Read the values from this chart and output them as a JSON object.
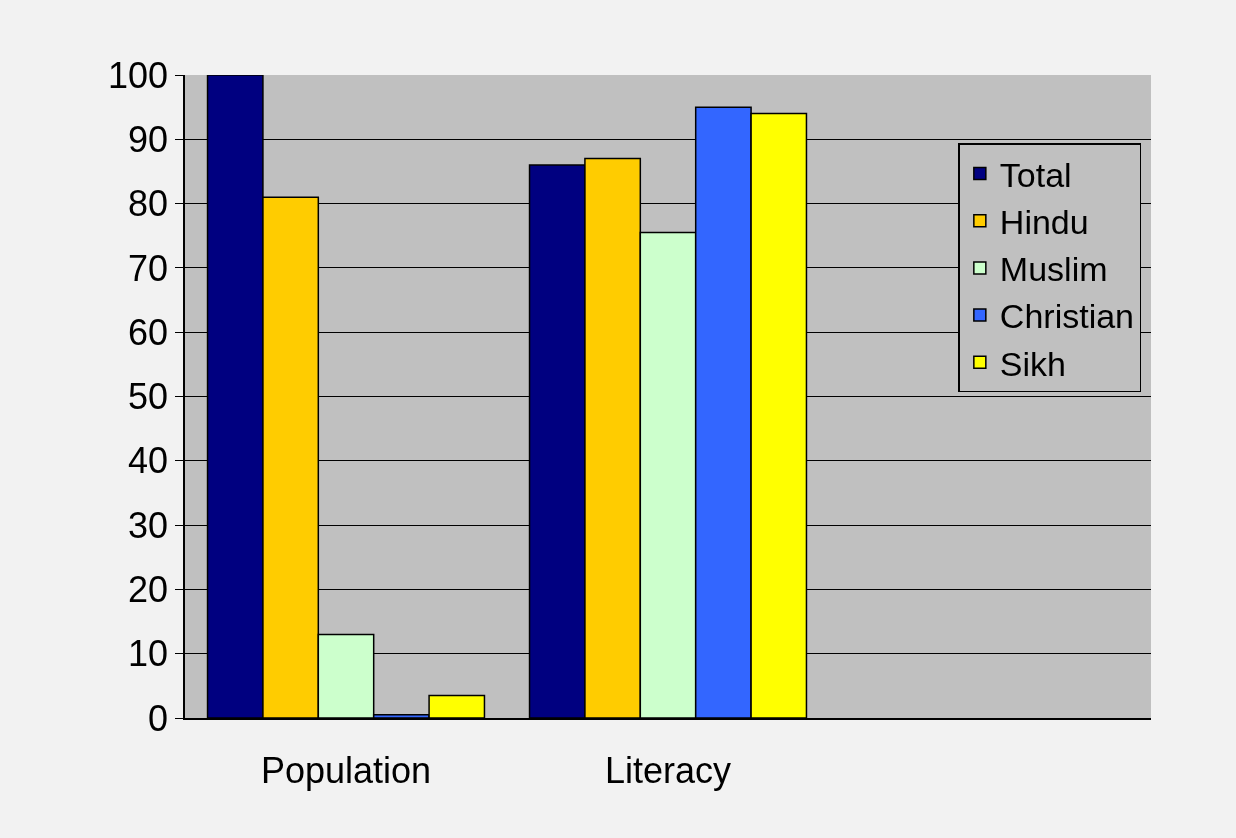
{
  "chart_data": {
    "type": "bar",
    "categories": [
      "Population",
      "Literacy",
      null
    ],
    "series": [
      {
        "name": "Total",
        "color": "#000080",
        "values": [
          100,
          86,
          null
        ]
      },
      {
        "name": "Hindu",
        "color": "#ffcc00",
        "values": [
          81,
          87,
          null
        ]
      },
      {
        "name": "Muslim",
        "color": "#ccffcc",
        "values": [
          13,
          75.5,
          null
        ]
      },
      {
        "name": "Christian",
        "color": "#3366ff",
        "values": [
          0.5,
          95,
          null
        ]
      },
      {
        "name": "Sikh",
        "color": "#ffff00",
        "values": [
          3.5,
          94,
          null
        ]
      }
    ],
    "ylim": [
      0,
      100
    ],
    "yticks": [
      0,
      10,
      20,
      30,
      40,
      50,
      60,
      70,
      80,
      90,
      100
    ],
    "grid": "y",
    "legend": "right"
  }
}
